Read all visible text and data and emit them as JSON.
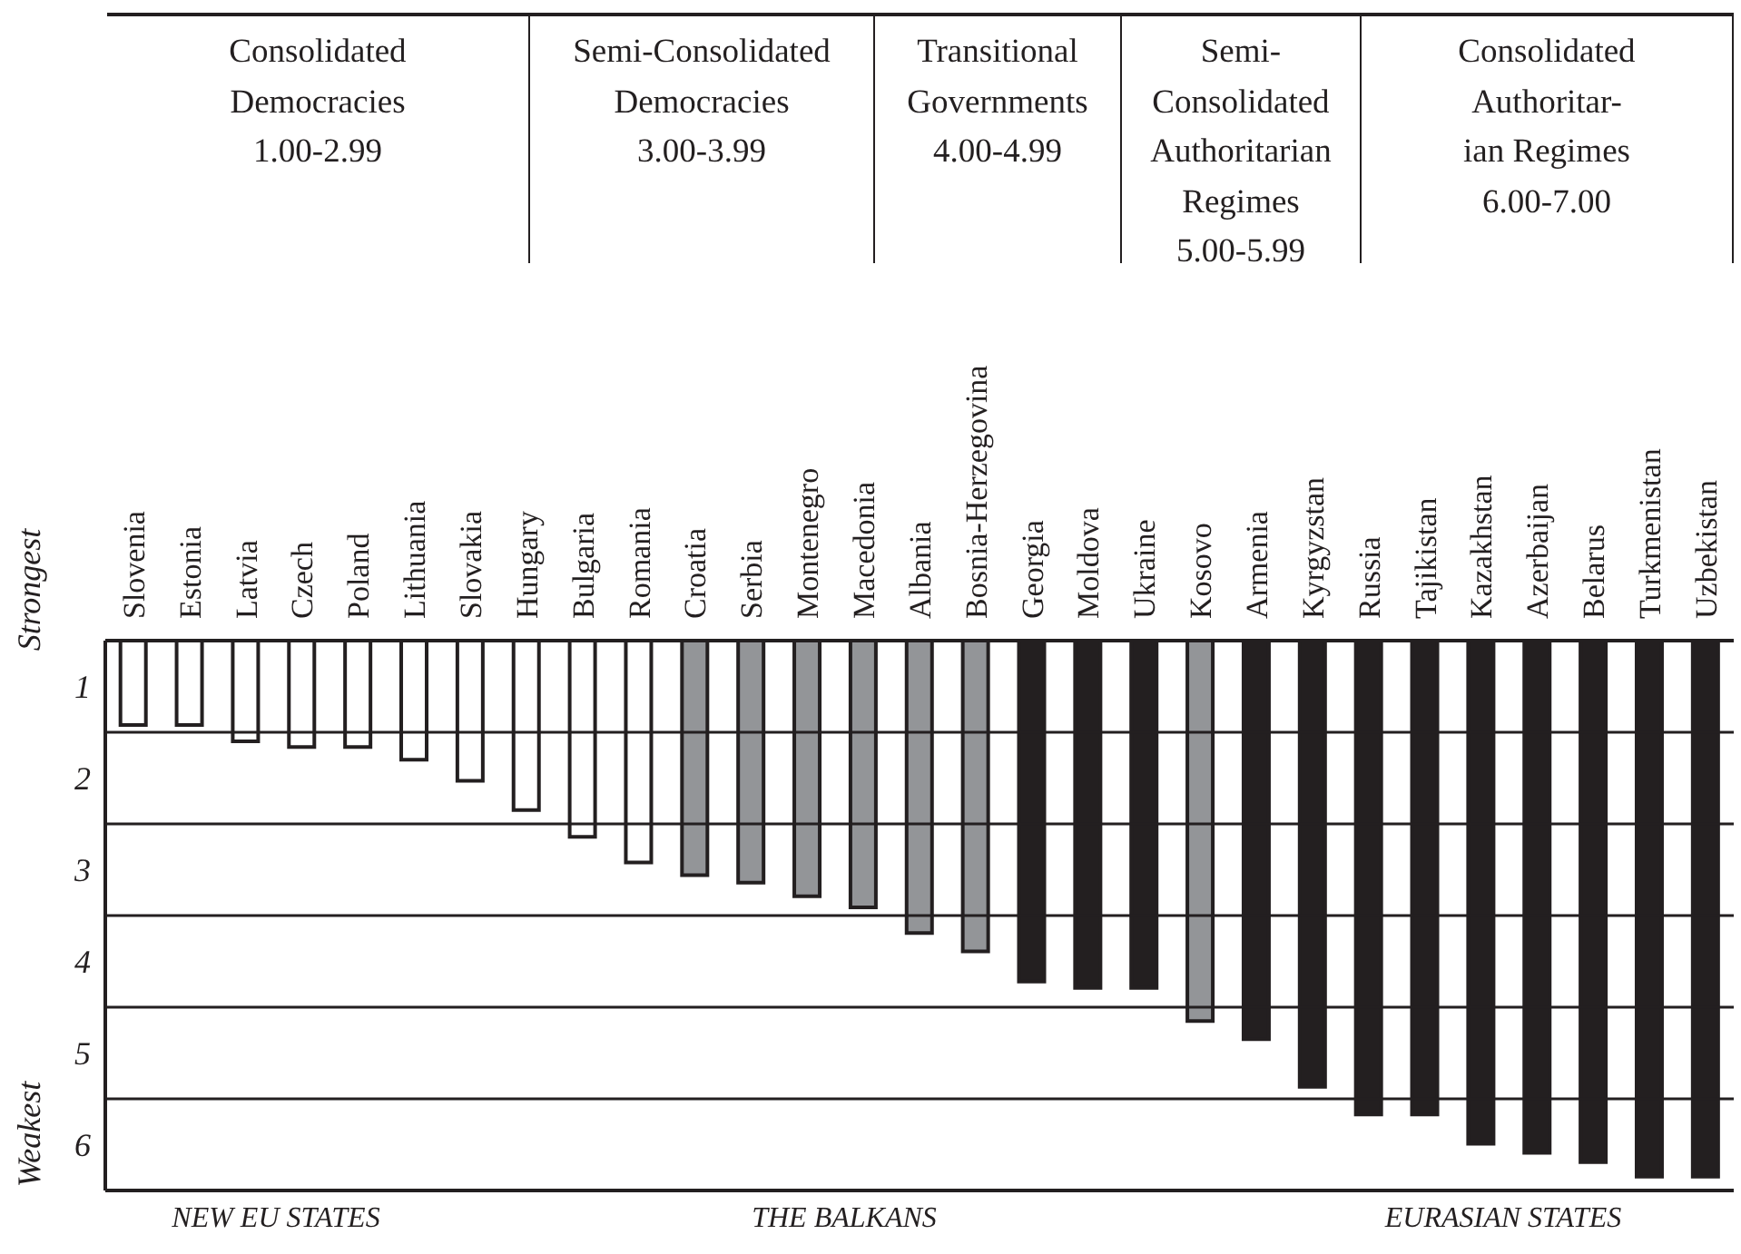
{
  "chart_data": {
    "type": "bar",
    "categories": [
      "Slovenia",
      "Estonia",
      "Latvia",
      "Czech",
      "Poland",
      "Lithuania",
      "Slovakia",
      "Hungary",
      "Bulgaria",
      "Romania",
      "Croatia",
      "Serbia",
      "Montenegro",
      "Macedonia",
      "Albania",
      "Bosnia-Herzegovina",
      "Georgia",
      "Moldova",
      "Ukraine",
      "Kosovo",
      "Armenia",
      "Kyrgyzstan",
      "Russia",
      "Tajikistan",
      "Kazakhstan",
      "Azerbaijan",
      "Belarus",
      "Turkmenistan",
      "Uzbekistan"
    ],
    "values": [
      1.92,
      1.92,
      2.1,
      2.16,
      2.16,
      2.3,
      2.53,
      2.85,
      3.14,
      3.42,
      3.56,
      3.64,
      3.79,
      3.91,
      4.19,
      4.39,
      4.72,
      4.79,
      4.79,
      5.15,
      5.35,
      5.87,
      6.17,
      6.17,
      6.49,
      6.59,
      6.69,
      6.85,
      6.85
    ],
    "colors": [
      "#ffffff",
      "#ffffff",
      "#ffffff",
      "#ffffff",
      "#ffffff",
      "#ffffff",
      "#ffffff",
      "#ffffff",
      "#ffffff",
      "#ffffff",
      "#939598",
      "#939598",
      "#939598",
      "#939598",
      "#939598",
      "#939598",
      "#231f20",
      "#231f20",
      "#231f20",
      "#939598",
      "#231f20",
      "#231f20",
      "#231f20",
      "#231f20",
      "#231f20",
      "#231f20",
      "#231f20",
      "#231f20",
      "#231f20"
    ],
    "ylim": [
      7,
      1
    ],
    "yticks": [
      {
        "value": 1.5,
        "label": "1"
      },
      {
        "value": 2.5,
        "label": "2"
      },
      {
        "value": 3.5,
        "label": "3"
      },
      {
        "value": 4.5,
        "label": "4"
      },
      {
        "value": 5.5,
        "label": "5"
      },
      {
        "value": 6.5,
        "label": "6"
      }
    ],
    "ref_lines": [
      {
        "axis": "y",
        "value": 2
      },
      {
        "axis": "y",
        "value": 3
      },
      {
        "axis": "y",
        "value": 4
      },
      {
        "axis": "y",
        "value": 5
      },
      {
        "axis": "y",
        "value": 6
      }
    ],
    "annotations": [
      "Consolidated\nDemocracies\n1.00-2.99",
      "Semi-Consolidated\nDemocracies\n3.00-3.99",
      "Transitional\nGovernments\n4.00-4.99",
      "Semi-\nConsolidated\nAuthoritarian\nRegimes\n5.00-5.99",
      "Consolidated\nAuthoritar-\nian  Regimes\n6.00-7.00",
      "NEW EU STATES",
      "THE BALKANS",
      "EURASIAN STATES",
      "Strongest",
      "Weakest"
    ]
  }
}
